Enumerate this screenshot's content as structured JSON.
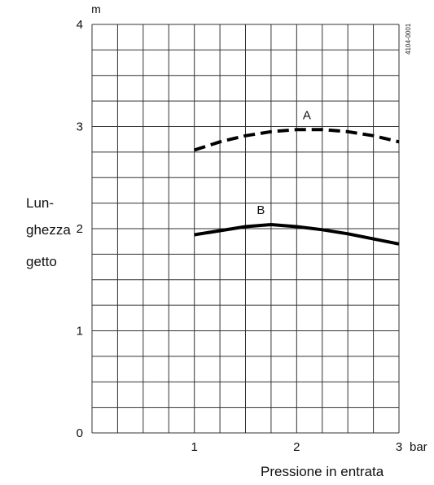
{
  "chart_data": {
    "type": "line",
    "xlabel": "Pressione in entrata",
    "xunit": "bar",
    "ylabel_lines": [
      "Lun-",
      "ghezza",
      "getto"
    ],
    "yunit": "m",
    "xlim": [
      0,
      3
    ],
    "ylim": [
      0,
      4
    ],
    "x_ticks": [
      "1",
      "2",
      "3"
    ],
    "y_ticks": [
      "0",
      "1",
      "2",
      "3",
      "4"
    ],
    "code": "4104-0001",
    "grid": true,
    "series": [
      {
        "name": "A",
        "style": "dashed",
        "x": [
          1.0,
          1.25,
          1.5,
          1.75,
          2.0,
          2.25,
          2.5,
          2.75,
          3.0
        ],
        "y": [
          2.77,
          2.85,
          2.91,
          2.95,
          2.97,
          2.97,
          2.95,
          2.91,
          2.85
        ]
      },
      {
        "name": "B",
        "style": "solid",
        "x": [
          1.0,
          1.25,
          1.5,
          1.75,
          2.0,
          2.25,
          2.5,
          2.75,
          3.0
        ],
        "y": [
          1.94,
          1.98,
          2.02,
          2.04,
          2.02,
          1.99,
          1.95,
          1.9,
          1.85
        ]
      }
    ]
  }
}
